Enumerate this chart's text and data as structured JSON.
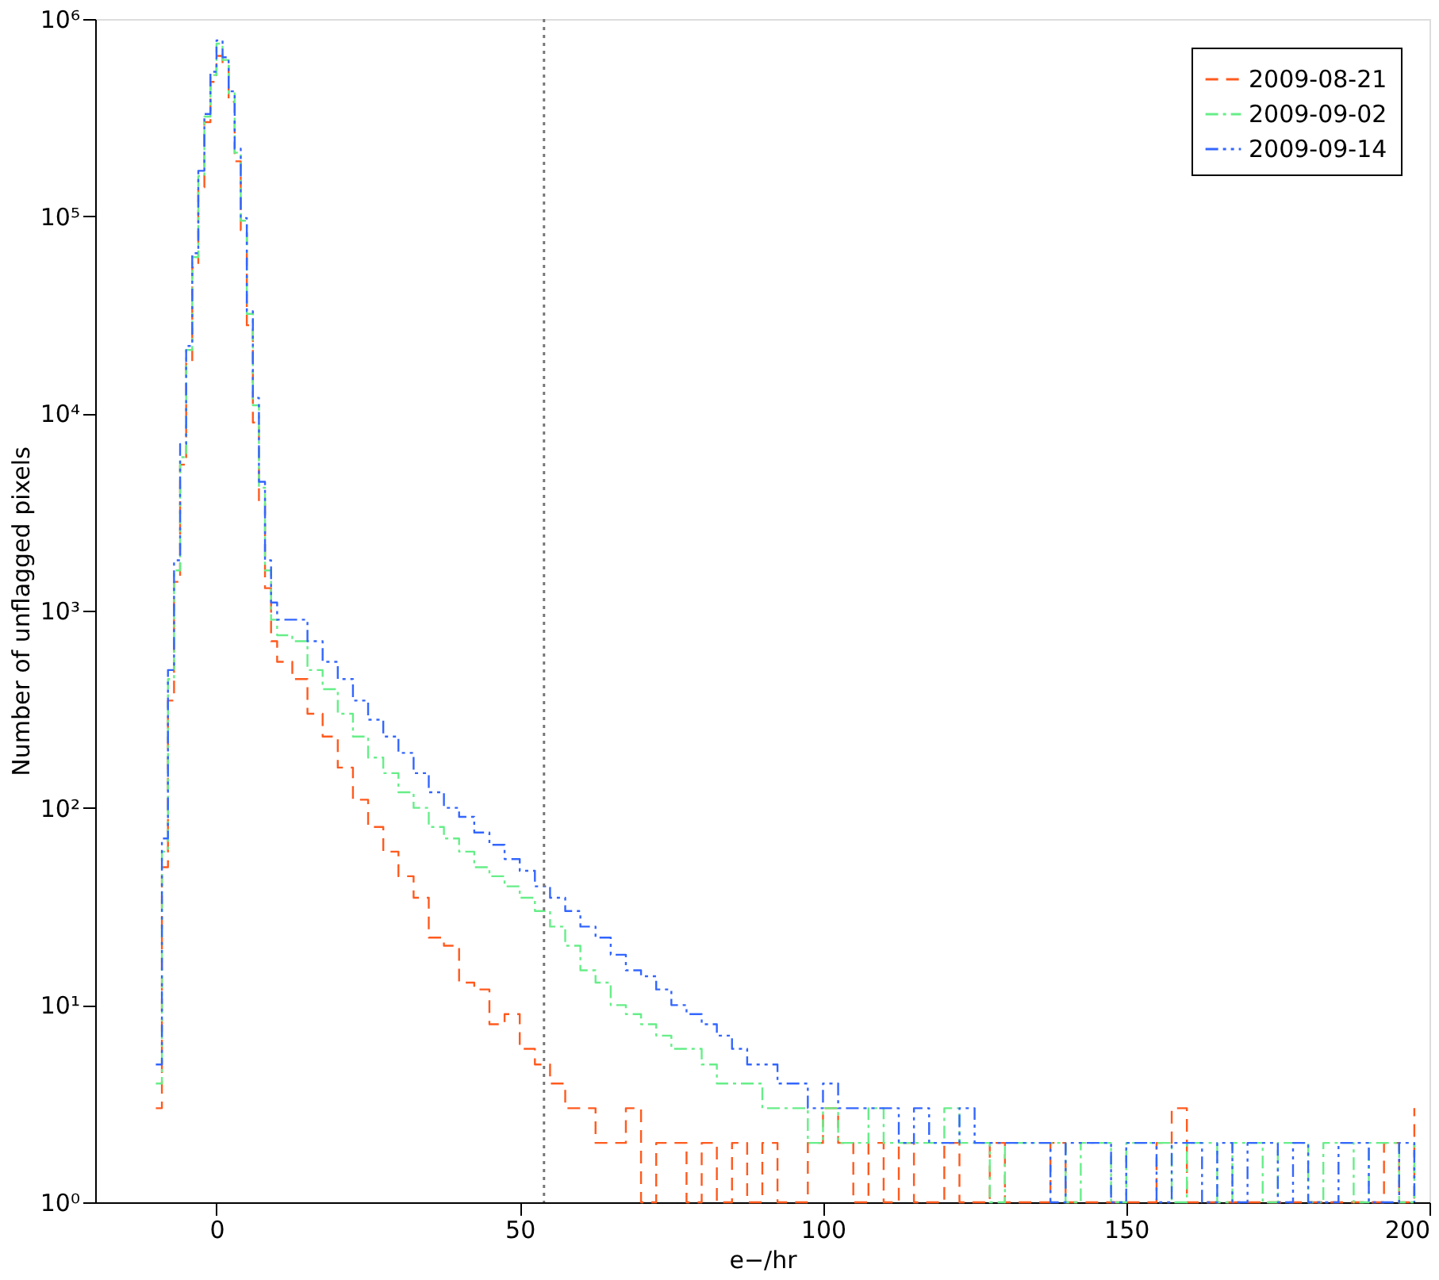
{
  "chart_data": {
    "type": "step",
    "xlabel": "e−/hr",
    "ylabel": "Number of unflagged pixels",
    "x": [
      -10,
      -9,
      -8,
      -7,
      -6,
      -5,
      -4,
      -3,
      -2,
      -1,
      0,
      1,
      2,
      3,
      4,
      5,
      6,
      7,
      8,
      9,
      10,
      12.5,
      15,
      17.5,
      20,
      22.5,
      25,
      27.5,
      30,
      32.5,
      35,
      37.5,
      40,
      42.5,
      45,
      47.5,
      50,
      52.5,
      55,
      57.5,
      60,
      62.5,
      65,
      67.5,
      70,
      72.5,
      75,
      77.5,
      80,
      82.5,
      85,
      87.5,
      90,
      92.5,
      95,
      97.5,
      100,
      102.5,
      105,
      107.5,
      110,
      112.5,
      115,
      117.5,
      120,
      122.5,
      125,
      127.5,
      130,
      132.5,
      135,
      137.5,
      140,
      142.5,
      145,
      147.5,
      150,
      152.5,
      155,
      157.5,
      160,
      162.5,
      165,
      167.5,
      170,
      172.5,
      175,
      177.5,
      180,
      182.5,
      185,
      187.5,
      190,
      192.5,
      195,
      197.5
    ],
    "series": [
      {
        "name": "2009-08-21",
        "color": "#ff5a1e",
        "line_style": "dashed",
        "values": [
          3,
          50,
          350,
          1400,
          5500,
          18000,
          55000,
          140000,
          300000,
          480000,
          650000,
          580000,
          380000,
          190000,
          85000,
          28000,
          9000,
          3500,
          1300,
          700,
          550,
          450,
          300,
          230,
          160,
          110,
          80,
          60,
          45,
          35,
          22,
          20,
          13,
          12,
          8,
          9,
          6,
          5,
          4,
          3,
          3,
          2,
          2,
          3,
          1,
          2,
          2,
          1,
          2,
          1,
          2,
          1,
          2,
          1,
          1,
          2,
          3,
          2,
          1,
          2,
          1,
          2,
          1,
          1,
          2,
          1,
          1,
          2,
          1,
          1,
          1,
          2,
          1,
          1,
          1,
          1,
          1,
          1,
          2,
          3,
          1,
          1,
          1,
          1,
          1,
          1,
          1,
          1,
          1,
          1,
          1,
          1,
          1,
          2,
          1,
          3
        ]
      },
      {
        "name": "2009-09-02",
        "color": "#66ee88",
        "line_style": "dashdot",
        "values": [
          4,
          60,
          450,
          1600,
          6000,
          21000,
          62000,
          160000,
          320000,
          520000,
          750000,
          620000,
          420000,
          210000,
          95000,
          32000,
          11000,
          4200,
          1600,
          900,
          750,
          700,
          500,
          400,
          300,
          230,
          180,
          150,
          120,
          100,
          80,
          70,
          60,
          50,
          45,
          40,
          35,
          30,
          25,
          20,
          15,
          13,
          10,
          9,
          8,
          7,
          6,
          6,
          5,
          4,
          4,
          4,
          3,
          3,
          3,
          2,
          3,
          2,
          2,
          3,
          2,
          2,
          2,
          2,
          3,
          2,
          2,
          1,
          2,
          2,
          2,
          2,
          1,
          2,
          2,
          1,
          2,
          2,
          2,
          1,
          2,
          2,
          1,
          2,
          2,
          1,
          2,
          2,
          1,
          2,
          2,
          1,
          2,
          2,
          1,
          2
        ]
      },
      {
        "name": "2009-09-14",
        "color": "#3366ff",
        "line_style": "dashdotdot",
        "values": [
          5,
          70,
          500,
          1800,
          7000,
          22000,
          65000,
          170000,
          330000,
          540000,
          780000,
          640000,
          430000,
          220000,
          98000,
          33000,
          12000,
          4500,
          1800,
          1100,
          900,
          900,
          700,
          550,
          450,
          350,
          280,
          230,
          190,
          150,
          120,
          100,
          90,
          75,
          65,
          55,
          48,
          40,
          35,
          30,
          25,
          22,
          18,
          15,
          14,
          12,
          10,
          9,
          8,
          7,
          6,
          5,
          5,
          4,
          4,
          3,
          4,
          3,
          3,
          3,
          3,
          2,
          3,
          2,
          2,
          3,
          2,
          2,
          2,
          2,
          2,
          1,
          2,
          2,
          2,
          1,
          2,
          2,
          1,
          2,
          2,
          1,
          2,
          1,
          2,
          2,
          1,
          2,
          1,
          1,
          2,
          2,
          1,
          1,
          2,
          1
        ]
      }
    ],
    "xlim": [
      -20,
      200
    ],
    "xticks": [
      0,
      50,
      100,
      150,
      200
    ],
    "ylim": [
      1,
      1000000
    ],
    "log": "y",
    "yticks": [
      {
        "value": 1,
        "label": "10⁰"
      },
      {
        "value": 10,
        "label": "10¹"
      },
      {
        "value": 100,
        "label": "10²"
      },
      {
        "value": 1000,
        "label": "10³"
      },
      {
        "value": 10000,
        "label": "10⁴"
      },
      {
        "value": 100000,
        "label": "10⁵"
      },
      {
        "value": 1000000,
        "label": "10⁶"
      }
    ],
    "ref_lines": [
      {
        "axis": "x",
        "value": 54,
        "color": "#777777",
        "line_style": "dotted"
      }
    ],
    "grid": false,
    "legend": "top right",
    "marker": "none"
  }
}
